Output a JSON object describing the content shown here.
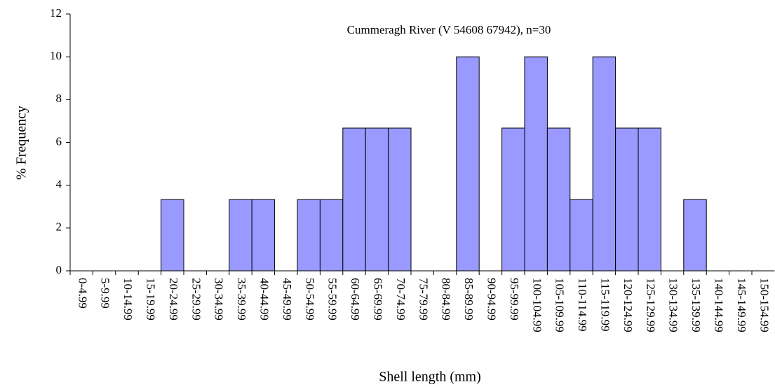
{
  "chart_data": {
    "type": "bar",
    "title": "Cummeragh River (V 54608 67942), n=30",
    "x_label": "Shell length (mm)",
    "y_label": "% Frequency",
    "categories": [
      "0-4.99",
      "5-9.99",
      "10-14.99",
      "15-19.99",
      "20-24.99",
      "25-29.99",
      "30-34.99",
      "35-39.99",
      "40-44.99",
      "45-49.99",
      "50-54.99",
      "55-59.99",
      "60-64.99",
      "65-69.99",
      "70-74.99",
      "75-79.99",
      "80-84.99",
      "85-89.99",
      "90-94.99",
      "95-99.99",
      "100-104.99",
      "105-109.99",
      "110-114.99",
      "115-119.99",
      "120-124.99",
      "125-129.99",
      "130-134.99",
      "135-139.99",
      "140-144.99",
      "145-149.99",
      "150-154.99"
    ],
    "values": [
      0,
      0,
      0,
      0,
      3.33,
      0,
      0,
      3.33,
      3.33,
      0,
      3.33,
      3.33,
      6.67,
      6.67,
      6.67,
      0,
      0,
      10,
      0,
      6.67,
      10,
      6.67,
      3.33,
      10,
      6.67,
      6.67,
      0,
      3.33,
      0,
      0,
      0
    ],
    "color": "#9999ff",
    "ylim": [
      0,
      12
    ],
    "yticks": [
      0,
      2,
      4,
      6,
      8,
      10,
      12
    ],
    "grid": false
  }
}
